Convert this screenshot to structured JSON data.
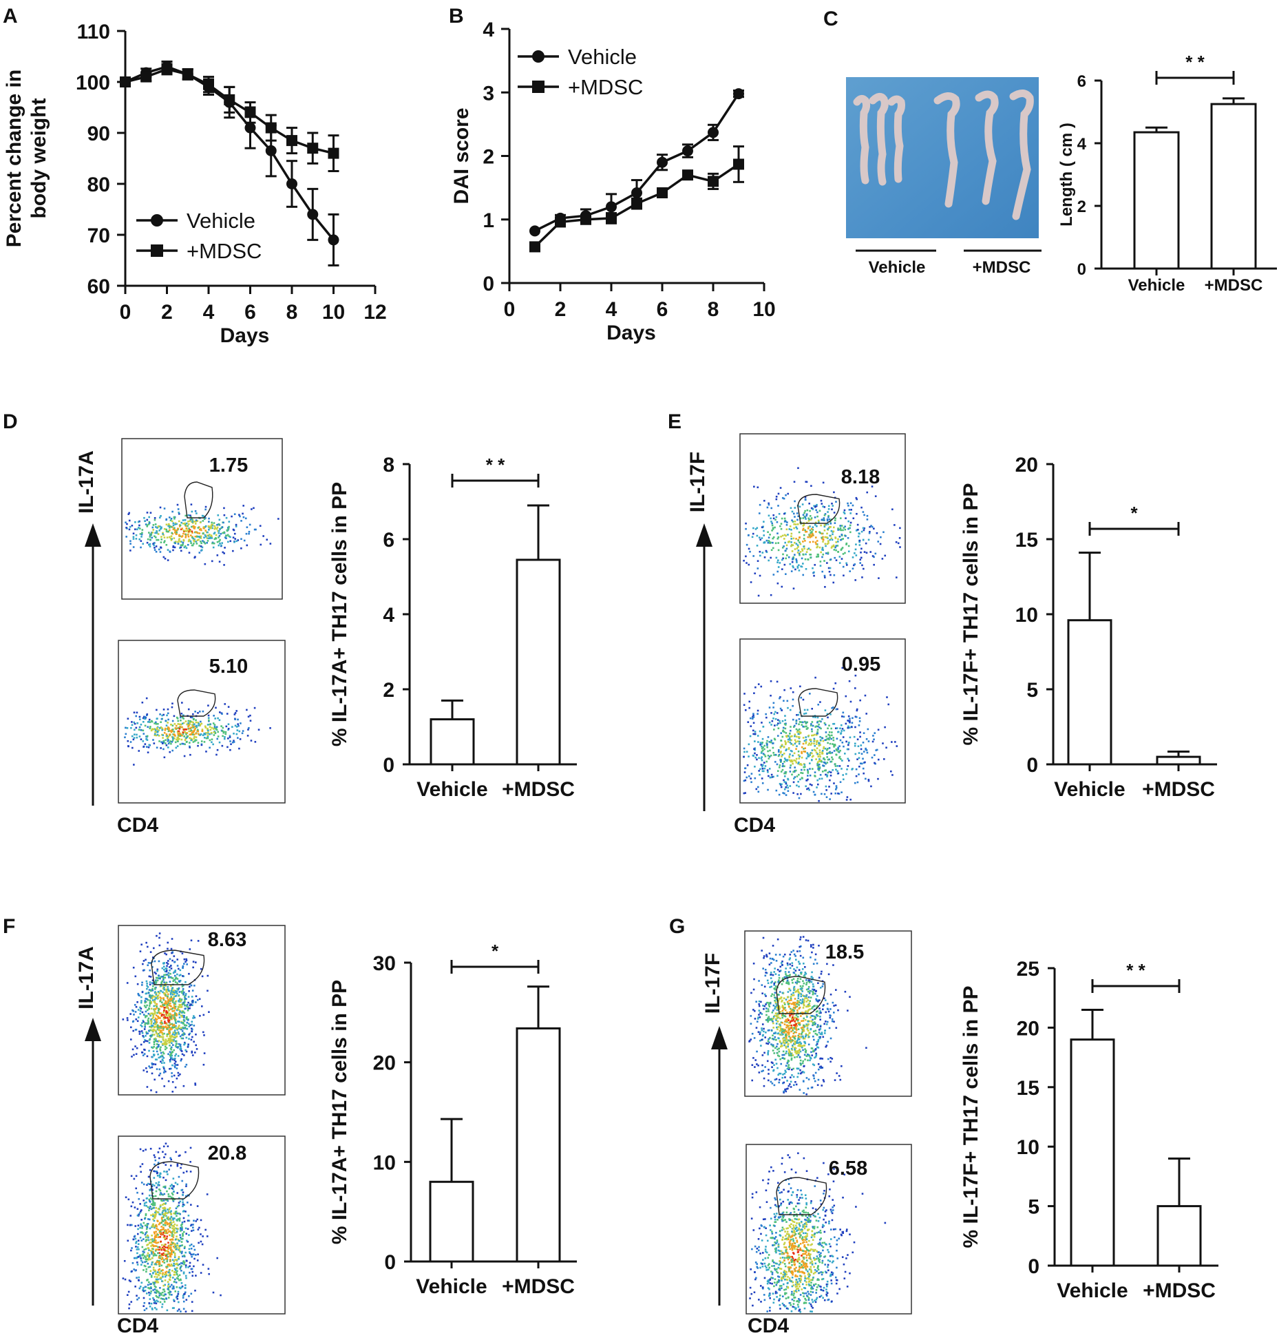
{
  "figure": {
    "panel_labels": [
      "A",
      "B",
      "C",
      "D",
      "E",
      "F",
      "G"
    ]
  },
  "chart_data": [
    {
      "id": "A",
      "type": "line",
      "title": "",
      "xlabel": "Days",
      "ylabel": [
        "Percent change in",
        "body weight"
      ],
      "xlim": [
        0,
        12
      ],
      "ylim": [
        60,
        110
      ],
      "xticks": [
        0,
        2,
        4,
        6,
        8,
        10,
        12
      ],
      "yticks": [
        60,
        70,
        80,
        90,
        100,
        110
      ],
      "series": [
        {
          "name": "Vehicle",
          "marker": "circle",
          "x": [
            0,
            1,
            2,
            3,
            4,
            5,
            6,
            7,
            8,
            9,
            10
          ],
          "y": [
            100,
            101.8,
            103,
            101.5,
            99,
            96,
            91,
            86.5,
            80,
            74,
            69
          ],
          "err": [
            0,
            0.8,
            1,
            1,
            1.5,
            3,
            4,
            5,
            4.5,
            5,
            5
          ]
        },
        {
          "name": "+MDSC",
          "marker": "square",
          "x": [
            0,
            1,
            2,
            3,
            4,
            5,
            6,
            7,
            8,
            9,
            10
          ],
          "y": [
            100,
            101,
            102.5,
            101.5,
            99.5,
            96.5,
            94,
            91,
            88.5,
            87,
            86
          ],
          "err": [
            0,
            0.8,
            1,
            1,
            1.5,
            2.5,
            2,
            2.5,
            2.5,
            3,
            3.5
          ]
        }
      ]
    },
    {
      "id": "B",
      "type": "line",
      "title": "",
      "xlabel": "Days",
      "ylabel": "DAI score",
      "xlim": [
        0,
        10
      ],
      "ylim": [
        0,
        4
      ],
      "xticks": [
        0,
        2,
        4,
        6,
        8,
        10
      ],
      "yticks": [
        0,
        1,
        2,
        3,
        4
      ],
      "series": [
        {
          "name": "Vehicle",
          "marker": "circle",
          "x": [
            1,
            2,
            3,
            4,
            5,
            6,
            7,
            8,
            9
          ],
          "y": [
            0.82,
            1.02,
            1.06,
            1.2,
            1.42,
            1.9,
            2.08,
            2.37,
            2.98
          ],
          "err": [
            0,
            0.05,
            0.1,
            0.2,
            0.2,
            0.12,
            0.1,
            0.12,
            0.05
          ]
        },
        {
          "name": "+MDSC",
          "marker": "square",
          "x": [
            1,
            2,
            3,
            4,
            5,
            6,
            7,
            8,
            9
          ],
          "y": [
            0.57,
            0.96,
            1.0,
            1.02,
            1.25,
            1.42,
            1.7,
            1.6,
            1.87
          ],
          "err": [
            0.05,
            0.05,
            0.06,
            0.08,
            0.08,
            0.06,
            0.06,
            0.12,
            0.28
          ]
        }
      ]
    },
    {
      "id": "C",
      "type": "bar",
      "title": "",
      "xlabel": "",
      "ylabel": "Length ( cm )",
      "categories": [
        "Vehicle",
        "+MDSC"
      ],
      "values": [
        4.35,
        5.25
      ],
      "err": [
        0.15,
        0.18
      ],
      "ylim": [
        0,
        6
      ],
      "yticks": [
        0,
        2,
        4,
        6
      ],
      "significance": "* *",
      "photo_labels": [
        "Vehicle",
        "+MDSC"
      ]
    },
    {
      "id": "D",
      "type": "bar",
      "title": "",
      "xlabel": "",
      "ylabel": "% IL-17A+ TH17 cells in PP",
      "categories": [
        "Vehicle",
        "+MDSC"
      ],
      "values": [
        1.2,
        5.45
      ],
      "err": [
        0.5,
        1.45
      ],
      "ylim": [
        0,
        8
      ],
      "yticks": [
        0,
        2,
        4,
        6,
        8
      ],
      "significance": "* *",
      "flow": {
        "y_axis": "IL-17A",
        "x_axis": "CD4",
        "gates": [
          "1.75",
          "5.10"
        ]
      }
    },
    {
      "id": "E",
      "type": "bar",
      "title": "",
      "xlabel": "",
      "ylabel": "% IL-17F+ TH17 cells in PP",
      "categories": [
        "Vehicle",
        "+MDSC"
      ],
      "values": [
        9.6,
        0.5
      ],
      "err": [
        4.5,
        0.35
      ],
      "ylim": [
        0,
        20
      ],
      "yticks": [
        0,
        5,
        10,
        15,
        20
      ],
      "significance": "*",
      "flow": {
        "y_axis": "IL-17F",
        "x_axis": "CD4",
        "gates": [
          "8.18",
          "0.95"
        ]
      }
    },
    {
      "id": "F",
      "type": "bar",
      "title": "",
      "xlabel": "",
      "ylabel": "% IL-17A+ TH17 cells in PP",
      "categories": [
        "Vehicle",
        "+MDSC"
      ],
      "values": [
        8.0,
        23.4
      ],
      "err": [
        6.3,
        4.2
      ],
      "ylim": [
        0,
        30
      ],
      "yticks": [
        0,
        10,
        20,
        30
      ],
      "significance": "*",
      "flow": {
        "y_axis": "IL-17A",
        "x_axis": "CD4",
        "gates": [
          "8.63",
          "20.8"
        ]
      }
    },
    {
      "id": "G",
      "type": "bar",
      "title": "",
      "xlabel": "",
      "ylabel": "% IL-17F+ TH17 cells in PP",
      "categories": [
        "Vehicle",
        "+MDSC"
      ],
      "values": [
        19.0,
        5.0
      ],
      "err": [
        2.5,
        4.0
      ],
      "ylim": [
        0,
        25
      ],
      "yticks": [
        0,
        5,
        10,
        15,
        20,
        25
      ],
      "significance": "* *",
      "flow": {
        "y_axis": "IL-17F",
        "x_axis": "CD4",
        "gates": [
          "18.5",
          "6.58"
        ]
      }
    }
  ]
}
